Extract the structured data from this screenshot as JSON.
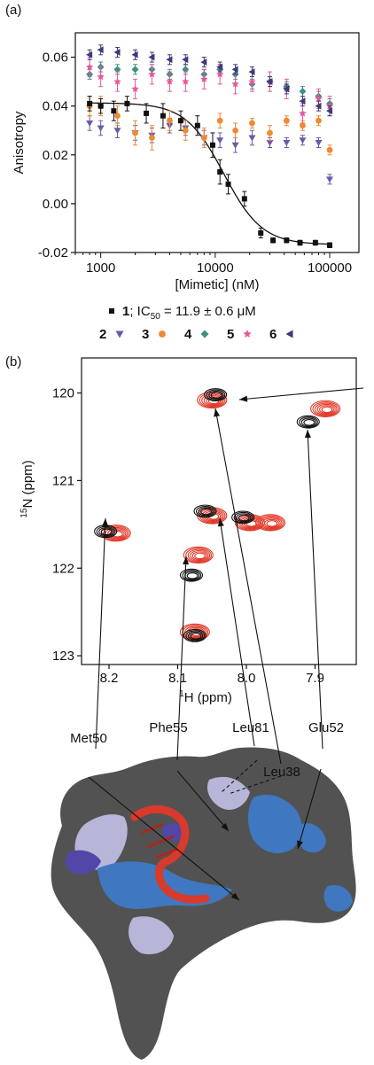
{
  "colors": {
    "compound_1": "#111111",
    "compound_2": "#6a5aa8",
    "compound_3": "#ee8a33",
    "compound_4": "#3f8f84",
    "compound_5": "#e8579a",
    "compound_6": "#3c3a78",
    "hsqc_black": "#111111",
    "hsqc_red": "#e23a2a",
    "protein_dark": "#525252",
    "protein_blue": "#3f78c0",
    "protein_lavender": "#b7b6d8",
    "protein_violet": "#5147a8",
    "helix_red": "#d83a2c"
  },
  "chart_data": [
    {
      "panel_label": "(a)",
      "type": "scatter",
      "xlabel": "[Mimetic] (nM)",
      "ylabel": "Anisotropy",
      "xscale": "log",
      "xlim": [
        600,
        180000
      ],
      "ylim": [
        -0.02,
        0.07
      ],
      "x_ticks": [
        1000,
        10000,
        100000
      ],
      "x_tick_labels": [
        "1000",
        "10000",
        "100000"
      ],
      "y_ticks": [
        -0.02,
        0.0,
        0.02,
        0.04,
        0.06
      ],
      "y_tick_labels": [
        "-0.02",
        "0.00",
        "0.02",
        "0.04",
        "0.06"
      ],
      "grid": false,
      "legend": {
        "placement": "below",
        "row1": {
          "label": "1",
          "text": "; IC",
          "sub": "50",
          "value": " = 11.9 ± 0.6 μM"
        },
        "row2": [
          "2",
          "3",
          "4",
          "5",
          "6"
        ]
      },
      "fit": {
        "series": "1",
        "model": "sigmoidal",
        "top": 0.0413,
        "bottom": -0.0168,
        "ic50": 11900,
        "hill": 2.6
      },
      "series": [
        {
          "name": "1",
          "marker": "square",
          "color_key": "compound_1",
          "x": [
            800,
            1000,
            1300,
            1700,
            2500,
            3500,
            5000,
            7000,
            9500,
            11000,
            13000,
            18000,
            25000,
            32000,
            42000,
            55000,
            75000,
            100000
          ],
          "y": [
            0.041,
            0.04,
            0.038,
            0.041,
            0.037,
            0.036,
            0.034,
            0.032,
            0.024,
            0.013,
            0.008,
            0.002,
            -0.012,
            -0.015,
            -0.015,
            -0.016,
            -0.016,
            -0.017
          ],
          "err": [
            0.003,
            0.003,
            0.004,
            0.003,
            0.004,
            0.005,
            0.004,
            0.004,
            0.005,
            0.005,
            0.004,
            0.003,
            0.002,
            0.001,
            0.001,
            0.001,
            0.001,
            0.001
          ]
        },
        {
          "name": "2",
          "marker": "triangle-down",
          "color_key": "compound_2",
          "x": [
            800,
            1000,
            1400,
            2000,
            2800,
            4000,
            5500,
            8000,
            11000,
            15000,
            21000,
            30000,
            42000,
            58000,
            80000,
            100000
          ],
          "y": [
            0.033,
            0.031,
            0.03,
            0.029,
            0.028,
            0.032,
            0.031,
            0.027,
            0.026,
            0.024,
            0.027,
            0.025,
            0.025,
            0.026,
            0.025,
            0.01
          ],
          "err": [
            0.003,
            0.003,
            0.003,
            0.003,
            0.003,
            0.003,
            0.003,
            0.003,
            0.003,
            0.003,
            0.003,
            0.002,
            0.002,
            0.002,
            0.002,
            0.002
          ]
        },
        {
          "name": "3",
          "marker": "circle",
          "color_key": "compound_3",
          "x": [
            800,
            1000,
            1400,
            2000,
            2800,
            4000,
            5500,
            8000,
            11000,
            15000,
            21000,
            30000,
            42000,
            58000,
            80000,
            100000
          ],
          "y": [
            0.04,
            0.04,
            0.036,
            0.029,
            0.027,
            0.034,
            0.03,
            0.027,
            0.034,
            0.03,
            0.033,
            0.029,
            0.034,
            0.032,
            0.034,
            0.022
          ],
          "err": [
            0.004,
            0.004,
            0.004,
            0.005,
            0.005,
            0.004,
            0.004,
            0.004,
            0.003,
            0.003,
            0.002,
            0.003,
            0.002,
            0.002,
            0.002,
            0.002
          ]
        },
        {
          "name": "4",
          "marker": "diamond",
          "color_key": "compound_4",
          "x": [
            800,
            1000,
            1400,
            2000,
            2800,
            4000,
            5500,
            8000,
            11000,
            15000,
            21000,
            30000,
            42000,
            58000,
            80000,
            100000
          ],
          "y": [
            0.053,
            0.056,
            0.055,
            0.055,
            0.055,
            0.053,
            0.055,
            0.053,
            0.055,
            0.053,
            0.049,
            0.05,
            0.048,
            0.046,
            0.044,
            0.041
          ],
          "err": [
            0.002,
            0.002,
            0.002,
            0.002,
            0.002,
            0.002,
            0.002,
            0.002,
            0.002,
            0.002,
            0.002,
            0.002,
            0.002,
            0.002,
            0.002,
            0.002
          ]
        },
        {
          "name": "5",
          "marker": "star",
          "color_key": "compound_5",
          "x": [
            800,
            1000,
            1400,
            2000,
            2800,
            4000,
            5500,
            8000,
            11000,
            15000,
            21000,
            30000,
            42000,
            58000,
            80000,
            100000
          ],
          "y": [
            0.056,
            0.052,
            0.05,
            0.047,
            0.053,
            0.05,
            0.05,
            0.051,
            0.053,
            0.049,
            0.05,
            0.05,
            0.047,
            0.037,
            0.043,
            0.04
          ],
          "err": [
            0.004,
            0.004,
            0.004,
            0.004,
            0.004,
            0.004,
            0.004,
            0.004,
            0.004,
            0.004,
            0.004,
            0.004,
            0.004,
            0.004,
            0.004,
            0.004
          ]
        },
        {
          "name": "6",
          "marker": "triangle-left",
          "color_key": "compound_6",
          "x": [
            800,
            1000,
            1400,
            2000,
            2800,
            4000,
            5500,
            8000,
            11000,
            15000,
            21000,
            30000,
            42000,
            58000,
            80000,
            100000
          ],
          "y": [
            0.061,
            0.063,
            0.062,
            0.061,
            0.06,
            0.059,
            0.059,
            0.058,
            0.056,
            0.055,
            0.054,
            0.05,
            0.047,
            0.042,
            0.04,
            0.038
          ],
          "err": [
            0.002,
            0.002,
            0.002,
            0.002,
            0.002,
            0.002,
            0.002,
            0.002,
            0.002,
            0.002,
            0.002,
            0.002,
            0.002,
            0.002,
            0.002,
            0.002
          ]
        }
      ]
    },
    {
      "panel_label": "(b)",
      "type": "scatter",
      "subtype": "hsqc_overlay",
      "xlabel_sup": "1",
      "xlabel_main": "H (ppm)",
      "ylabel_sup": "15",
      "ylabel_main": "N (ppm)",
      "x_reversed": true,
      "xlim": [
        8.24,
        7.84
      ],
      "ylim": [
        119.6,
        123.1
      ],
      "x_ticks": [
        8.2,
        8.1,
        8.0,
        7.9
      ],
      "x_tick_labels": [
        "8.2",
        "8.1",
        "8.0",
        "7.9"
      ],
      "y_ticks": [
        120,
        121,
        122,
        123
      ],
      "y_tick_labels": [
        "120",
        "121",
        "122",
        "123"
      ],
      "grid": false,
      "peaks_black": [
        {
          "x": 8.205,
          "y": 121.58
        },
        {
          "x": 8.045,
          "y": 120.02
        },
        {
          "x": 8.06,
          "y": 121.35
        },
        {
          "x": 8.005,
          "y": 121.42
        },
        {
          "x": 8.08,
          "y": 122.08
        },
        {
          "x": 8.075,
          "y": 122.77
        },
        {
          "x": 7.91,
          "y": 120.33
        }
      ],
      "peaks_red": [
        {
          "x": 8.19,
          "y": 121.6
        },
        {
          "x": 8.05,
          "y": 120.08
        },
        {
          "x": 8.05,
          "y": 121.4
        },
        {
          "x": 7.995,
          "y": 121.48
        },
        {
          "x": 8.07,
          "y": 121.85
        },
        {
          "x": 8.075,
          "y": 122.73
        },
        {
          "x": 7.885,
          "y": 120.18
        },
        {
          "x": 7.965,
          "y": 121.48
        }
      ],
      "residues": [
        "Met50",
        "Phe55",
        "Leu81",
        "Leu38",
        "Glu52"
      ]
    }
  ]
}
